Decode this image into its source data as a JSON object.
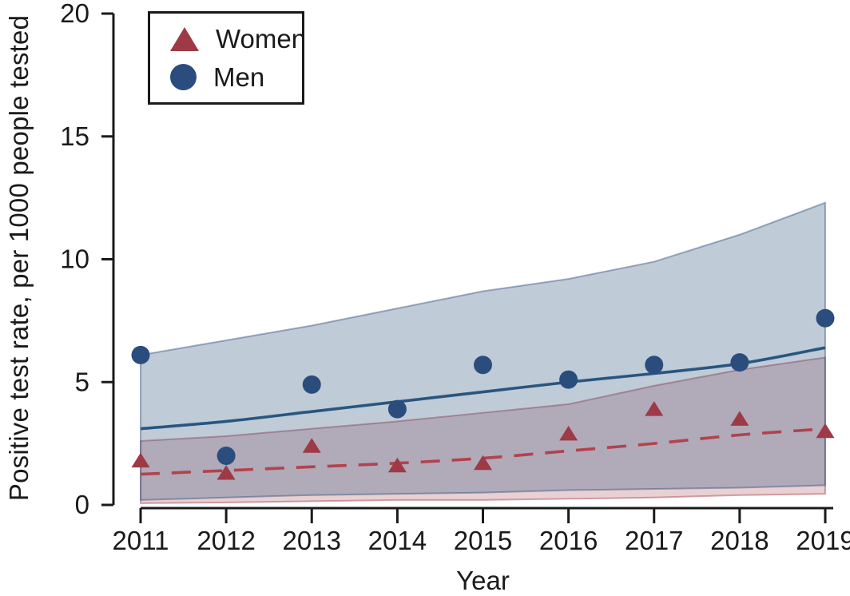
{
  "chart_data": {
    "type": "scatter",
    "subtype": "scatter with fitted trend lines and confidence bands",
    "title": "",
    "xlabel": "Year",
    "ylabel": "Positive test rate, per 1000 people tested",
    "x": [
      2011,
      2012,
      2013,
      2014,
      2015,
      2016,
      2017,
      2018,
      2019
    ],
    "ylim": [
      0,
      20
    ],
    "yticks": [
      0,
      5,
      10,
      15,
      20
    ],
    "grid": false,
    "legend_position": "top-left",
    "axis_color": "#1a1a1a",
    "series": [
      {
        "name": "Women",
        "marker": "triangle",
        "marker_color": "#9e3a46",
        "line_color": "#b2424c",
        "line_style": "dashed",
        "band_color": "#a33b47",
        "band_fill_opacity": 0.24,
        "points": [
          1.8,
          1.3,
          2.4,
          1.6,
          1.7,
          2.9,
          3.9,
          3.5,
          3.0
        ],
        "fit_line": [
          1.25,
          1.4,
          1.55,
          1.7,
          1.9,
          2.2,
          2.5,
          2.85,
          3.1
        ],
        "band_upper": [
          2.6,
          2.8,
          3.1,
          3.4,
          3.75,
          4.1,
          4.85,
          5.5,
          6.0
        ],
        "band_lower": [
          0.07,
          0.1,
          0.15,
          0.2,
          0.2,
          0.25,
          0.3,
          0.4,
          0.45
        ]
      },
      {
        "name": "Men",
        "marker": "circle",
        "marker_color": "#2a4d7e",
        "line_color": "#28567f",
        "line_style": "solid",
        "band_color": "#2d527f",
        "band_fill_opacity": 0.3,
        "points": [
          6.1,
          2.0,
          4.9,
          3.9,
          5.7,
          5.1,
          5.7,
          5.8,
          7.6
        ],
        "fit_line": [
          3.1,
          3.4,
          3.8,
          4.2,
          4.6,
          5.0,
          5.35,
          5.75,
          6.4
        ],
        "band_upper": [
          6.1,
          6.7,
          7.3,
          8.0,
          8.7,
          9.2,
          9.9,
          11.0,
          12.3
        ],
        "band_lower": [
          0.2,
          0.3,
          0.4,
          0.45,
          0.5,
          0.6,
          0.65,
          0.7,
          0.8
        ]
      }
    ],
    "legend": {
      "entries": [
        "Women",
        "Men"
      ]
    }
  }
}
